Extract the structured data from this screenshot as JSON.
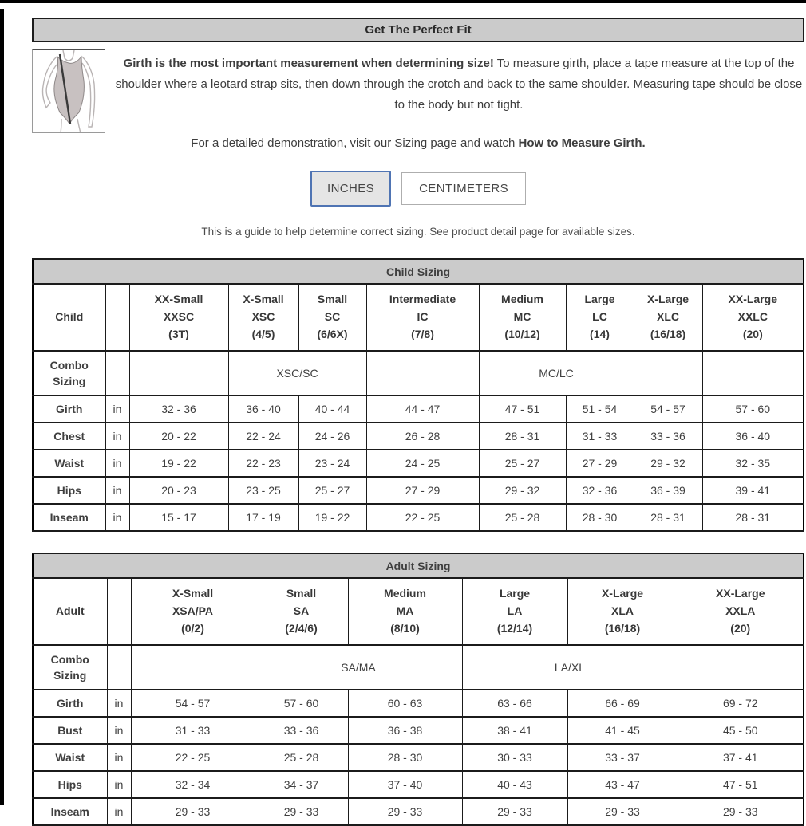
{
  "page": {
    "title_bar": "Get The Perfect Fit",
    "intro_bold": "Girth is the most important measurement when determining size!",
    "intro_rest": " To measure girth, place a tape measure at the top of the shoulder where a leotard strap sits, then down through the crotch and back to the same shoulder. Measuring tape should be close to the body but not tight.",
    "demo_prefix": "For a detailed demonstration, visit our Sizing page and watch ",
    "demo_bold": "How to Measure Girth.",
    "note": "This is a guide to help determine correct sizing. See product detail page for available sizes.",
    "illustration": "leotard-girth-diagram"
  },
  "units": {
    "inches_label": "INCHES",
    "centimeters_label": "CENTIMETERS",
    "selected": "INCHES"
  },
  "colors": {
    "accent_blue": "#4f74b3",
    "header_gray": "#cbcbcb",
    "border_black": "#1b1b1b",
    "text": "#3f3f3f"
  },
  "child_table": {
    "title": "Child Sizing",
    "row_header": "Child",
    "combo_label": "Combo Sizing",
    "unit": "in",
    "columns": [
      {
        "name": "XX-Small",
        "code": "XXSC",
        "sizes": "(3T)"
      },
      {
        "name": "X-Small",
        "code": "XSC",
        "sizes": "(4/5)"
      },
      {
        "name": "Small",
        "code": "SC",
        "sizes": "(6/6X)"
      },
      {
        "name": "Intermediate",
        "code": "IC",
        "sizes": "(7/8)"
      },
      {
        "name": "Medium",
        "code": "MC",
        "sizes": "(10/12)"
      },
      {
        "name": "Large",
        "code": "LC",
        "sizes": "(14)"
      },
      {
        "name": "X-Large",
        "code": "XLC",
        "sizes": "(16/18)"
      },
      {
        "name": "XX-Large",
        "code": "XXLC",
        "sizes": "(20)"
      }
    ],
    "combo_cells": [
      {
        "span": 1,
        "label": ""
      },
      {
        "span": 2,
        "label": "XSC/SC"
      },
      {
        "span": 1,
        "label": ""
      },
      {
        "span": 2,
        "label": "MC/LC"
      },
      {
        "span": 1,
        "label": ""
      },
      {
        "span": 1,
        "label": ""
      }
    ],
    "rows": [
      {
        "label": "Girth",
        "values": [
          "32 - 36",
          "36 - 40",
          "40 - 44",
          "44 - 47",
          "47 - 51",
          "51 - 54",
          "54 - 57",
          "57 - 60"
        ]
      },
      {
        "label": "Chest",
        "values": [
          "20 - 22",
          "22 - 24",
          "24 - 26",
          "26 - 28",
          "28 - 31",
          "31 - 33",
          "33 - 36",
          "36 - 40"
        ]
      },
      {
        "label": "Waist",
        "values": [
          "19 - 22",
          "22 - 23",
          "23 - 24",
          "24 - 25",
          "25 - 27",
          "27 - 29",
          "29 - 32",
          "32 - 35"
        ]
      },
      {
        "label": "Hips",
        "values": [
          "20 - 23",
          "23 - 25",
          "25 - 27",
          "27 - 29",
          "29 - 32",
          "32 - 36",
          "36 - 39",
          "39 - 41"
        ]
      },
      {
        "label": "Inseam",
        "values": [
          "15 - 17",
          "17 - 19",
          "19 - 22",
          "22 - 25",
          "25 - 28",
          "28 - 30",
          "28 - 31",
          "28 - 31"
        ]
      }
    ]
  },
  "adult_table": {
    "title": "Adult Sizing",
    "row_header": "Adult",
    "combo_label": "Combo Sizing",
    "unit": "in",
    "columns": [
      {
        "name": "X-Small",
        "code": "XSA/PA",
        "sizes": "(0/2)"
      },
      {
        "name": "Small",
        "code": "SA",
        "sizes": "(2/4/6)"
      },
      {
        "name": "Medium",
        "code": "MA",
        "sizes": "(8/10)"
      },
      {
        "name": "Large",
        "code": "LA",
        "sizes": "(12/14)"
      },
      {
        "name": "X-Large",
        "code": "XLA",
        "sizes": "(16/18)"
      },
      {
        "name": "XX-Large",
        "code": "XXLA",
        "sizes": "(20)"
      }
    ],
    "combo_cells": [
      {
        "span": 1,
        "label": ""
      },
      {
        "span": 2,
        "label": "SA/MA"
      },
      {
        "span": 2,
        "label": "LA/XL"
      },
      {
        "span": 1,
        "label": ""
      }
    ],
    "rows": [
      {
        "label": "Girth",
        "values": [
          "54 - 57",
          "57 - 60",
          "60 - 63",
          "63 - 66",
          "66 - 69",
          "69 - 72"
        ]
      },
      {
        "label": "Bust",
        "values": [
          "31 - 33",
          "33 - 36",
          "36 - 38",
          "38 - 41",
          "41 - 45",
          "45 - 50"
        ]
      },
      {
        "label": "Waist",
        "values": [
          "22 - 25",
          "25 - 28",
          "28 - 30",
          "30 - 33",
          "33 - 37",
          "37 - 41"
        ]
      },
      {
        "label": "Hips",
        "values": [
          "32 - 34",
          "34 - 37",
          "37 - 40",
          "40 - 43",
          "43 - 47",
          "47 - 51"
        ]
      },
      {
        "label": "Inseam",
        "values": [
          "29 - 33",
          "29 - 33",
          "29 - 33",
          "29 - 33",
          "29 - 33",
          "29 - 33"
        ]
      }
    ]
  }
}
